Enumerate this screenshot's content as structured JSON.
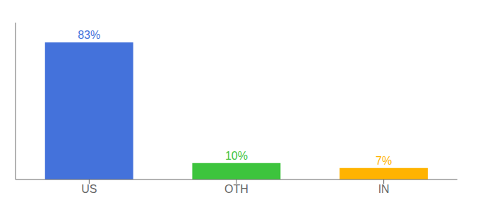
{
  "chart_data": {
    "type": "bar",
    "categories": [
      "US",
      "OTH",
      "IN"
    ],
    "values": [
      83,
      10,
      7
    ],
    "value_labels": [
      "83%",
      "10%",
      "7%"
    ],
    "colors": [
      "#4472db",
      "#3dc43d",
      "#ffb300"
    ],
    "ylim": [
      0,
      95
    ],
    "data_labels": true,
    "tick_labels": "x",
    "grid": false
  }
}
